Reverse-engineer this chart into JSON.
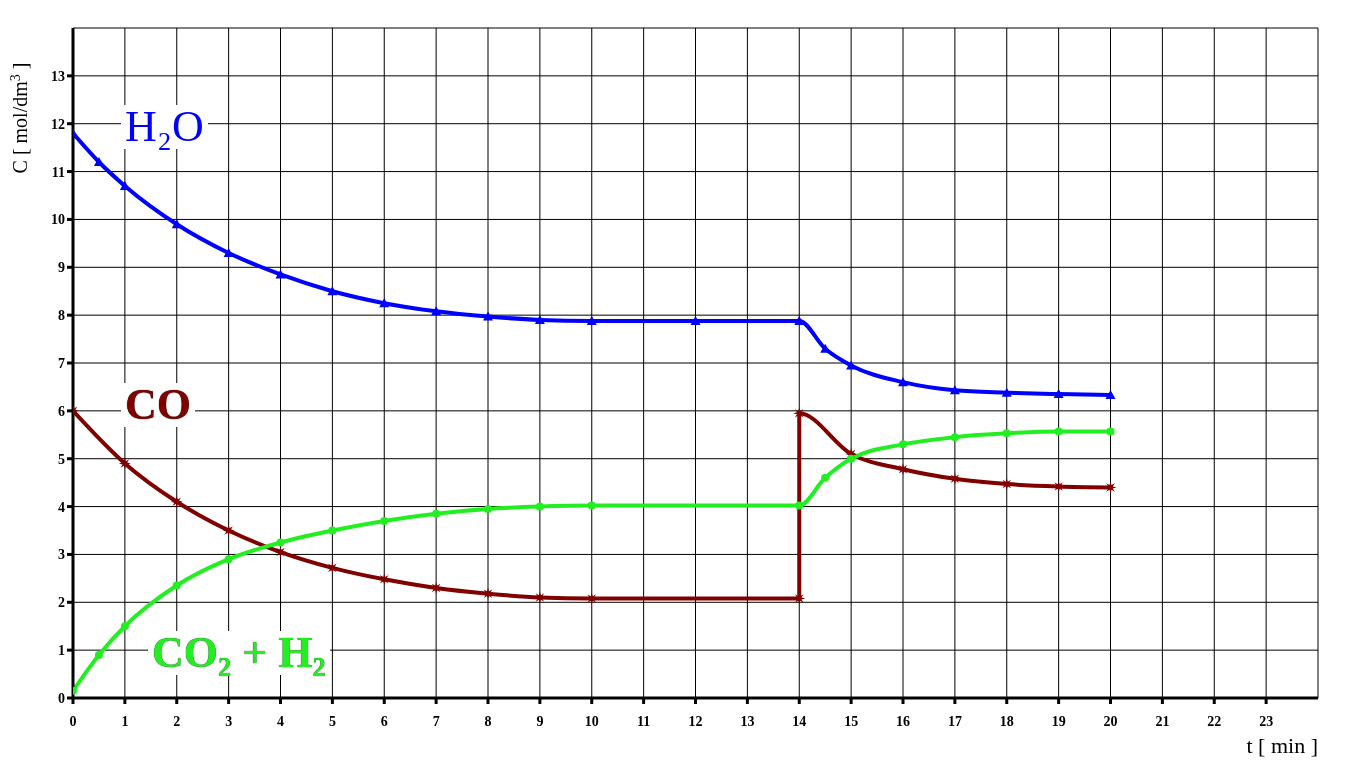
{
  "chart_data": {
    "type": "line",
    "xlabel": "t [ min ]",
    "ylabel": "C [ mol/dm$^{3}$ ]",
    "xlim": [
      0,
      24
    ],
    "xticks": [
      0,
      1,
      2,
      3,
      4,
      5,
      6,
      7,
      8,
      9,
      10,
      11,
      12,
      13,
      14,
      15,
      16,
      17,
      18,
      19,
      20,
      21,
      22,
      23
    ],
    "ylim": [
      0,
      14
    ],
    "yticks": [
      0,
      1,
      2,
      3,
      4,
      5,
      6,
      7,
      8,
      9,
      10,
      11,
      12,
      13
    ],
    "grid": true,
    "line_style": "solid",
    "series": [
      {
        "name": "H₂O",
        "color": "#0000ff",
        "marker": "triangle",
        "x": [
          0,
          0.5,
          1,
          2,
          3,
          4,
          5,
          6,
          7,
          8,
          9,
          10,
          12,
          14,
          14.5,
          15,
          16,
          17,
          18,
          19,
          20
        ],
        "values": [
          11.8,
          11.2,
          10.7,
          9.9,
          9.3,
          8.85,
          8.5,
          8.25,
          8.08,
          7.97,
          7.9,
          7.88,
          7.88,
          7.88,
          7.3,
          6.95,
          6.6,
          6.43,
          6.38,
          6.35,
          6.33
        ]
      },
      {
        "name": "CO",
        "color": "#800000",
        "marker": "star",
        "x": [
          0,
          1,
          2,
          3,
          4,
          5,
          6,
          7,
          8,
          9,
          10,
          14,
          14,
          15,
          16,
          17,
          18,
          19,
          20
        ],
        "values": [
          6,
          4.9,
          4.1,
          3.5,
          3.05,
          2.72,
          2.48,
          2.3,
          2.18,
          2.1,
          2.08,
          2.08,
          5.95,
          5.1,
          4.78,
          4.58,
          4.47,
          4.42,
          4.4
        ]
      },
      {
        "name": "CO₂ + H₂",
        "color": "#22ee22",
        "marker": "circle",
        "x": [
          0,
          0.5,
          1,
          2,
          3,
          4,
          5,
          6,
          7,
          8,
          9,
          10,
          14,
          14.5,
          15,
          16,
          17,
          18,
          19,
          20
        ],
        "values": [
          0.15,
          0.9,
          1.5,
          2.35,
          2.9,
          3.25,
          3.5,
          3.7,
          3.85,
          3.95,
          4.0,
          4.02,
          4.02,
          4.6,
          5.0,
          5.3,
          5.45,
          5.53,
          5.57,
          5.57
        ]
      }
    ]
  }
}
